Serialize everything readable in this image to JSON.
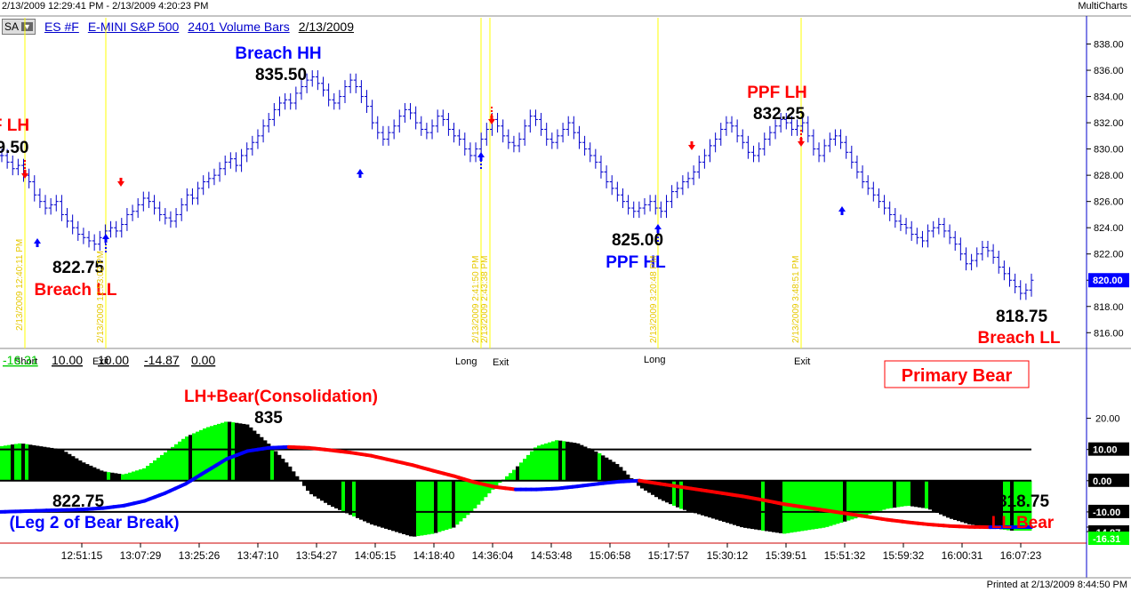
{
  "window": {
    "title_left": "2/13/2009 12:29:41 PM - 2/13/2009 4:20:23 PM",
    "title_right": "MultiCharts",
    "printed": "Printed at 2/13/2009 8:44:50 PM"
  },
  "toolbar": {
    "sa_label": "SA",
    "symbol": "ES #F",
    "name": "E-MINI S&P 500",
    "bars": "2401 Volume Bars",
    "date": "2/13/2009"
  },
  "colors": {
    "bar": "#0000cc",
    "yellow_line": "#ffff00",
    "green_hist": "#00ff00",
    "black_hist": "#000000",
    "red": "#ff0000",
    "blue": "#0000ff",
    "price_tag": "#0000ff"
  },
  "price_panel": {
    "y_ticks": [
      "838.00",
      "836.00",
      "834.00",
      "832.00",
      "830.00",
      "828.00",
      "826.00",
      "824.00",
      "822.00",
      "820.00",
      "818.00",
      "816.00"
    ],
    "current_price": "820.00",
    "annotations": [
      {
        "label": "F LH",
        "value": "9.50",
        "color": "red"
      },
      {
        "label": "Breach HH",
        "value": "835.50",
        "color": "blue"
      },
      {
        "label": "Breach LL",
        "value": "822.75",
        "color": "red"
      },
      {
        "label": "PPF HL",
        "value": "825.00",
        "color": "blue"
      },
      {
        "label": "PPF LH",
        "value": "832.25",
        "color": "red"
      },
      {
        "label": "Breach LL",
        "value": "818.75",
        "color": "red"
      }
    ],
    "vline_labels": [
      "2/13/2009 12:40:11 PM",
      "2/13/2009 12:53:02 PM",
      "2/13/2009 2:41:50 PM",
      "2/13/2009 2:43:38 PM",
      "2/13/2009 3:20:48 PM",
      "2/13/2009 3:48:51 PM"
    ],
    "signal_labels": [
      "Short",
      "Exit",
      "Long",
      "Exit",
      "Long",
      "Exit"
    ]
  },
  "indicator_panel": {
    "header_values": [
      "-16.31",
      "10.00",
      "10.00",
      "-14.87",
      "0.00"
    ],
    "regime": "Primary Bear",
    "y_ticks": [
      "20.00",
      "10.00",
      "0.00",
      "-10.00",
      "-14.87",
      "-16.31"
    ],
    "annotations": {
      "consolidation": "LH+Bear(Consolidation)",
      "consolidation_value": "835",
      "leg2_value": "822.75",
      "leg2": "(Leg 2 of Bear Break)",
      "ll_value": "818.75",
      "ll": "LL Bear"
    }
  },
  "x_axis": {
    "labels": [
      "12:51:15",
      "13:07:29",
      "13:25:26",
      "13:47:10",
      "13:54:27",
      "14:05:15",
      "14:18:40",
      "14:36:04",
      "14:53:48",
      "15:06:58",
      "15:17:57",
      "15:30:12",
      "15:39:51",
      "15:51:32",
      "15:59:32",
      "16:00:31",
      "16:07:23"
    ]
  },
  "chart_data": [
    {
      "type": "line",
      "ylim": [
        814.8,
        840.0
      ],
      "series": [
        {
          "values": [
            829.5,
            829.0,
            828.5,
            828.75,
            828.0,
            827.5,
            826.5,
            826.0,
            825.5,
            825.75,
            826.0,
            825.0,
            824.5,
            824.0,
            823.5,
            823.25,
            823.0,
            822.75,
            823.25,
            823.75,
            824.0,
            823.75,
            824.25,
            825.0,
            825.25,
            825.75,
            826.25,
            826.0,
            825.5,
            825.0,
            824.75,
            824.5,
            825.0,
            825.75,
            826.5,
            826.25,
            827.0,
            827.5,
            827.75,
            828.0,
            828.5,
            829.0,
            829.25,
            828.75,
            829.5,
            830.0,
            830.5,
            831.0,
            831.75,
            832.25,
            833.0,
            833.5,
            833.75,
            833.5,
            834.25,
            834.75,
            835.25,
            835.5,
            835.0,
            834.5,
            833.75,
            833.5,
            834.0,
            834.75,
            835.25,
            834.75,
            834.0,
            833.25,
            832.0,
            831.25,
            830.75,
            831.25,
            831.75,
            832.5,
            833.0,
            832.75,
            832.0,
            831.5,
            831.25,
            831.75,
            832.5,
            832.25,
            831.5,
            831.0,
            830.75,
            830.0,
            829.5,
            830.0,
            830.75,
            831.5,
            832.25,
            831.75,
            831.0,
            830.5,
            830.25,
            830.75,
            831.75,
            832.5,
            832.25,
            831.5,
            830.75,
            830.5,
            831.0,
            831.5,
            832.0,
            831.25,
            830.5,
            830.0,
            829.5,
            829.0,
            828.25,
            827.5,
            827.0,
            826.5,
            826.0,
            825.5,
            825.25,
            825.5,
            825.75,
            826.0,
            825.5,
            825.25,
            826.0,
            826.75,
            827.0,
            827.5,
            827.75,
            828.25,
            829.0,
            829.5,
            830.25,
            830.75,
            831.5,
            832.0,
            831.75,
            831.0,
            830.5,
            829.75,
            829.5,
            830.0,
            830.75,
            831.25,
            831.75,
            832.25,
            832.0,
            831.5,
            831.75,
            832.0,
            831.0,
            830.0,
            829.5,
            830.25,
            830.75,
            831.0,
            830.5,
            829.75,
            829.0,
            828.25,
            827.5,
            827.0,
            826.5,
            826.0,
            825.5,
            825.0,
            824.5,
            824.25,
            824.0,
            823.5,
            823.25,
            823.0,
            823.75,
            824.0,
            824.25,
            823.75,
            823.25,
            822.75,
            822.0,
            821.25,
            821.5,
            822.0,
            822.5,
            822.25,
            821.75,
            821.0,
            820.5,
            820.0,
            819.5,
            819.0,
            819.25,
            820.0
          ]
        }
      ]
    },
    {
      "type": "area",
      "ylim": [
        -20.0,
        27.0
      ],
      "reference_lines": [
        10.0,
        0.0,
        -10.0
      ],
      "x": [
        0,
        2,
        4,
        6,
        8,
        10,
        12,
        14,
        16,
        18,
        20,
        22,
        24,
        26,
        28,
        30,
        32,
        34,
        36,
        38,
        40,
        42,
        44,
        46,
        48,
        50,
        52,
        54,
        56,
        58,
        60,
        62,
        64,
        66,
        68,
        70,
        72,
        74,
        76,
        78,
        80,
        82,
        84,
        86,
        88,
        90,
        92,
        94,
        96,
        98,
        100
      ],
      "series": [
        {
          "name": "histogram",
          "values": [
            11,
            12,
            11,
            10,
            6,
            3,
            2,
            4,
            9,
            14,
            17,
            19,
            18,
            12,
            5,
            -4,
            -8,
            -11,
            -14,
            -16,
            -18,
            -17,
            -15,
            -9,
            -2,
            4,
            11,
            13,
            12,
            9,
            5,
            -2,
            -6,
            -9,
            -11,
            -13,
            -15,
            -16,
            -17,
            -16,
            -15,
            -13,
            -11,
            -9,
            -8,
            -9,
            -12,
            -14,
            -15,
            -16,
            -16
          ]
        },
        {
          "name": "smooth",
          "values": [
            -10,
            -9.8,
            -9.6,
            -9.4,
            -9.2,
            -8.8,
            -8.0,
            -6.5,
            -4.0,
            -1.0,
            3.0,
            7.0,
            9.5,
            10.5,
            10.8,
            10.5,
            9.8,
            9.0,
            8.0,
            6.5,
            5.0,
            3.2,
            1.5,
            -0.5,
            -2.0,
            -2.8,
            -2.8,
            -2.5,
            -1.8,
            -1.0,
            -0.3,
            0.0,
            -1.0,
            -2.0,
            -3.0,
            -4.0,
            -5.0,
            -6.2,
            -7.5,
            -8.5,
            -9.5,
            -10.5,
            -11.5,
            -12.5,
            -13.3,
            -14.0,
            -14.5,
            -14.8,
            -14.9,
            -14.87,
            -14.87
          ]
        }
      ]
    }
  ]
}
